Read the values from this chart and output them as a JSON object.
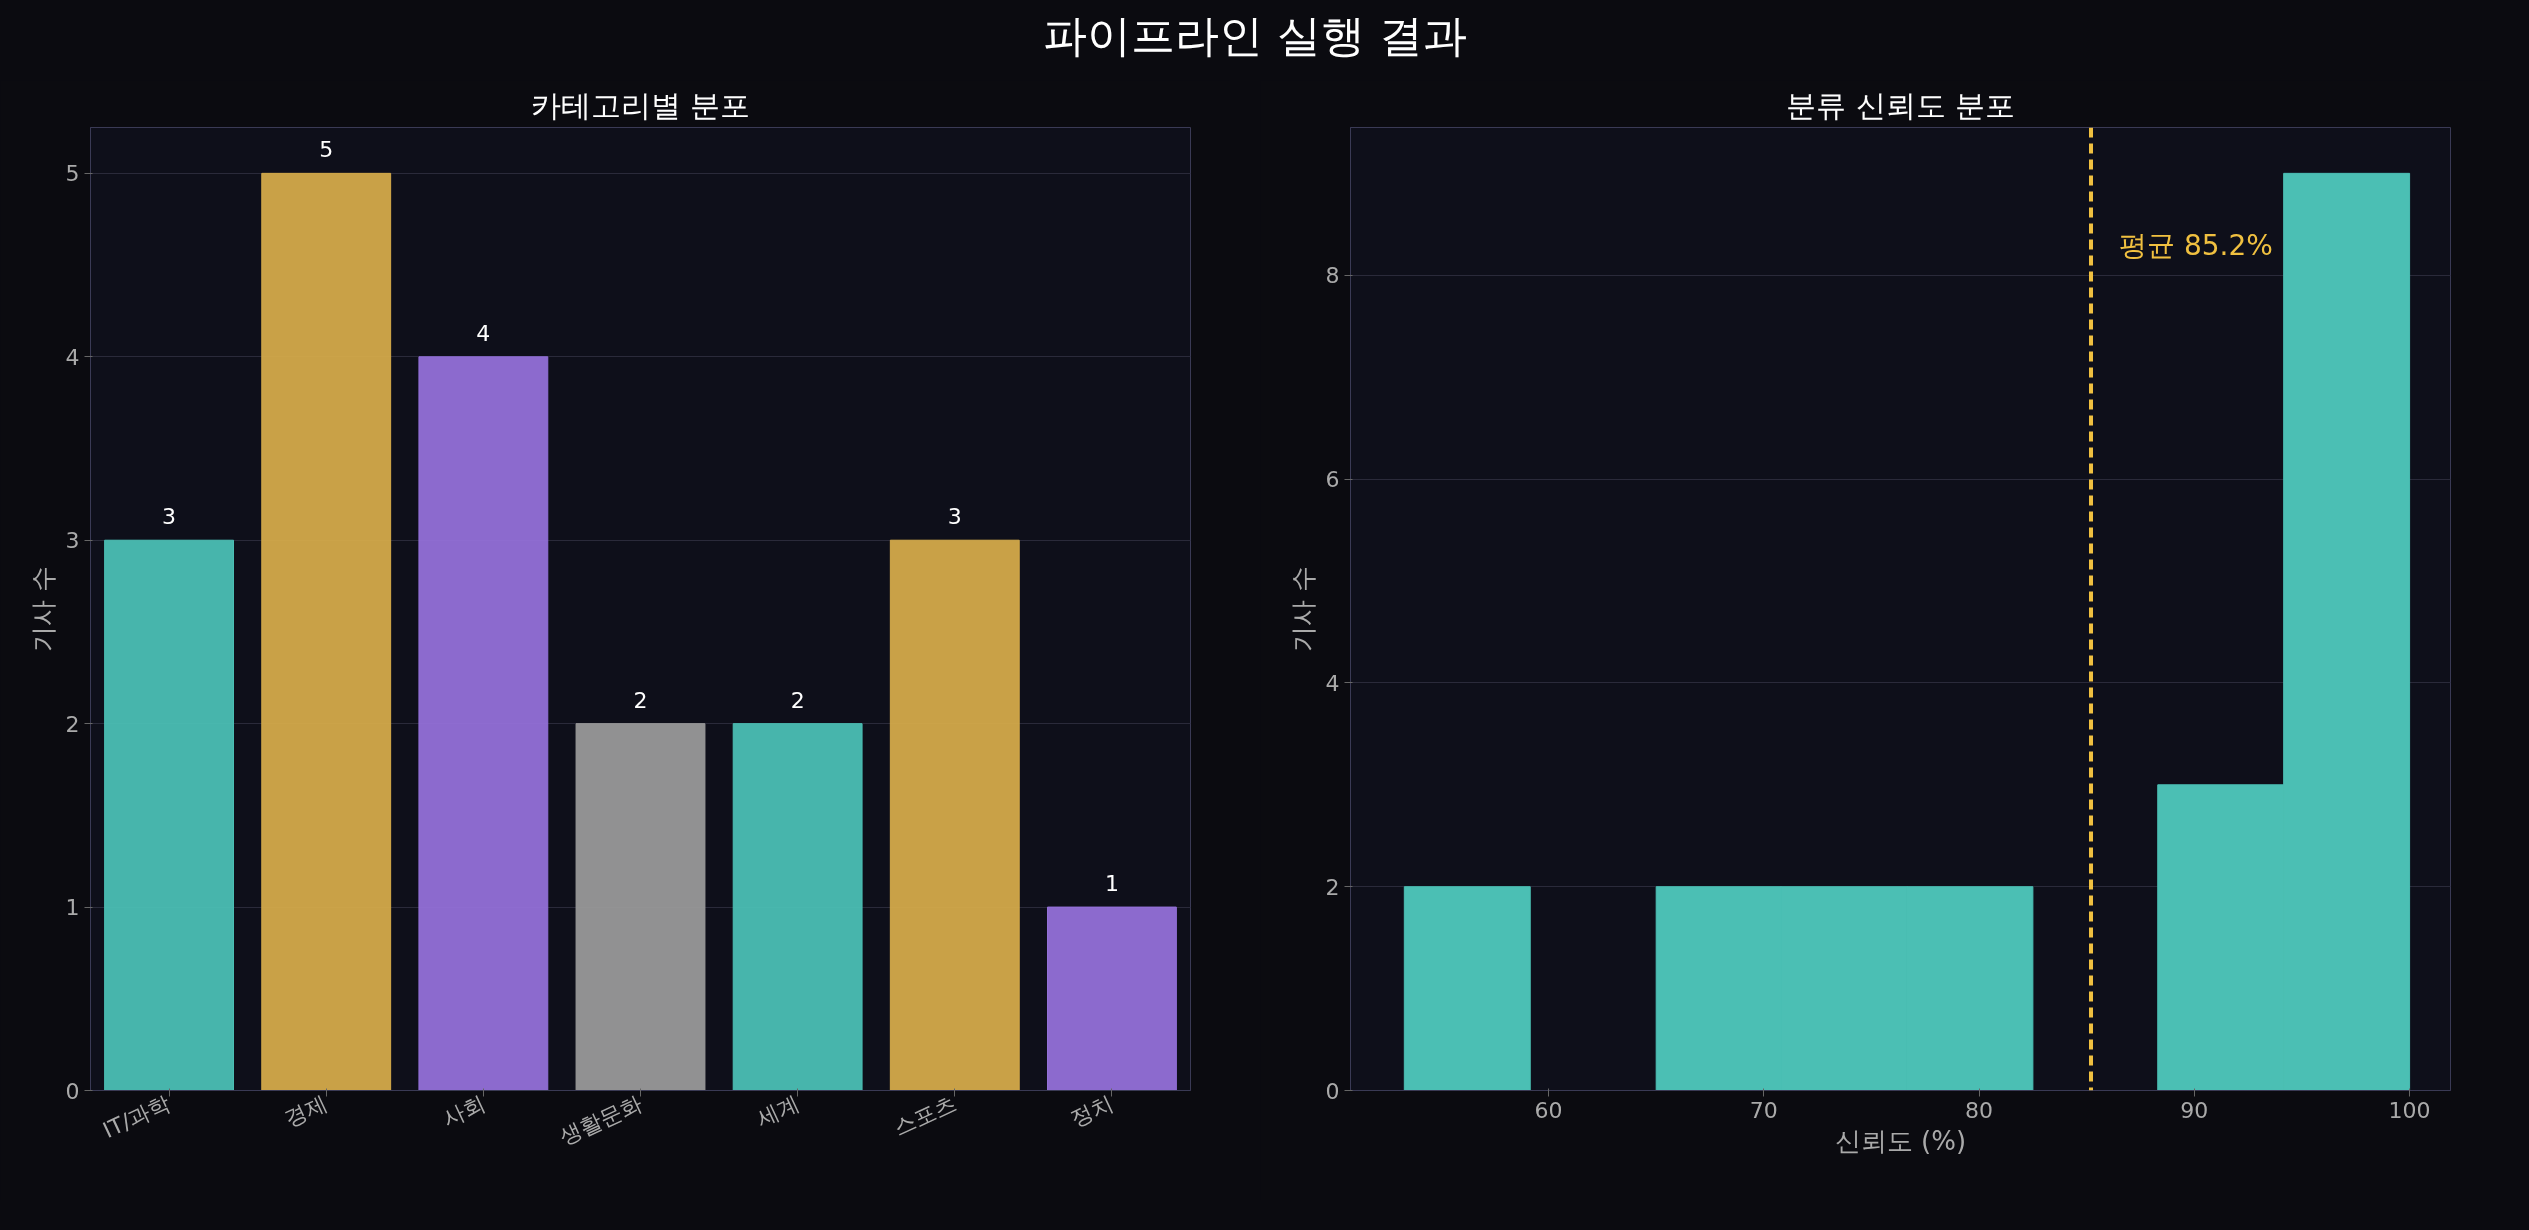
{
  "chart_data": [
    {
      "type": "bar",
      "title": "카테고리별 분포",
      "ylabel": "기사 수",
      "annotations": [
        "파이프라인 실행 결과"
      ],
      "categories": [
        "IT/과학",
        "경제",
        "사회",
        "생활문화",
        "세계",
        "스포츠",
        "정치"
      ],
      "values": [
        3,
        5,
        4,
        2,
        2,
        3,
        1
      ],
      "colors": [
        "#4bbfb4",
        "#d4aa4a",
        "#9370d8",
        "#999999",
        "#4bbfb4",
        "#d4aa4a",
        "#9370d8"
      ],
      "ylim": [
        0,
        5.25
      ],
      "yticks": [
        0,
        1,
        2,
        3,
        4,
        5
      ],
      "grid": "y",
      "data_labels": true
    },
    {
      "type": "histogram",
      "title": "분류 신뢰도 분포",
      "xlabel": "신뢰도 (%)",
      "ylabel": "기사 수",
      "bins": [
        53.3,
        59.15,
        65.0,
        70.8,
        76.65,
        82.5,
        88.3,
        94.15,
        100
      ],
      "values": [
        2,
        0,
        2,
        2,
        2,
        0,
        3,
        9
      ],
      "color": "#4bbfb4",
      "xlim": [
        50.8,
        101.9
      ],
      "xticks": [
        60,
        70,
        80,
        90,
        100
      ],
      "ylim": [
        0,
        9.45
      ],
      "yticks": [
        0,
        2,
        4,
        6,
        8
      ],
      "grid": "y",
      "ref_lines": [
        {
          "axis": "x",
          "value": 85.2,
          "label": "평균 85.2%",
          "color": "#f0c040",
          "line_style": "dashed"
        }
      ]
    }
  ]
}
